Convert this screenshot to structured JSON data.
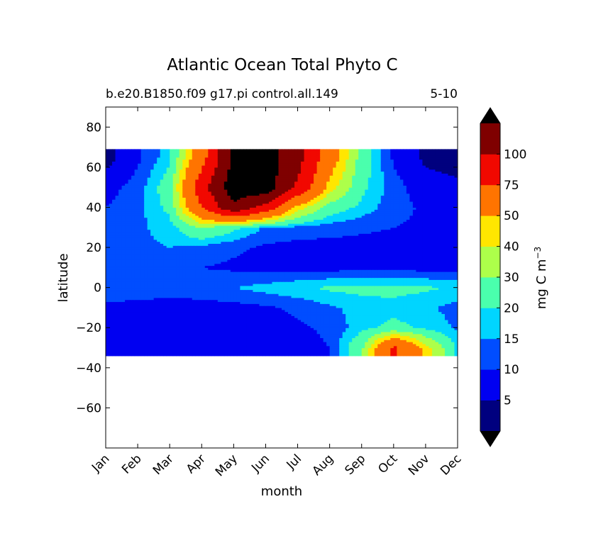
{
  "chart_data": {
    "type": "heatmap",
    "title": "Atlantic Ocean Total Phyto C",
    "subtitle_left": "b.e20.B1850.f09 g17.pi control.all.149",
    "subtitle_right": "5-10",
    "xlabel": "month",
    "ylabel": "latitude",
    "x_categories": [
      "Jan",
      "Feb",
      "Mar",
      "Apr",
      "May",
      "Jun",
      "Jul",
      "Aug",
      "Sep",
      "Oct",
      "Nov",
      "Dec"
    ],
    "xlim": [
      0,
      11
    ],
    "ylim": [
      -80,
      90
    ],
    "y_ticks": [
      80,
      60,
      40,
      20,
      0,
      -20,
      -40,
      -60
    ],
    "y_tick_labels": [
      "80",
      "60",
      "40",
      "20",
      "0",
      "−20",
      "−40",
      "−60"
    ],
    "data_lat_range": [
      -34,
      69
    ],
    "colorbar": {
      "label": "mg C m",
      "label_exponent": "−3",
      "levels": [
        0,
        5,
        10,
        15,
        20,
        30,
        40,
        50,
        75,
        100,
        125
      ],
      "tick_labels": [
        "5",
        "10",
        "15",
        "20",
        "30",
        "40",
        "50",
        "75",
        "100"
      ],
      "colors": [
        "#00007f",
        "#0000f1",
        "#004dff",
        "#00d5ff",
        "#4affad",
        "#adff4a",
        "#ffe600",
        "#ff7400",
        "#f10800",
        "#7f0000"
      ],
      "over_color": "#000000",
      "under_color": "#000000",
      "extend": "both"
    },
    "approx_values": {
      "note_rows": "latitude bands (deg N), values per month Jan..Dec",
      "rows": [
        {
          "lat": 65,
          "values": [
            3,
            9,
            18,
            65,
            130,
            135,
            110,
            60,
            25,
            9,
            4,
            3
          ]
        },
        {
          "lat": 50,
          "values": [
            8,
            12,
            25,
            90,
            140,
            140,
            95,
            45,
            22,
            12,
            7,
            6
          ]
        },
        {
          "lat": 40,
          "values": [
            10,
            13,
            22,
            75,
            120,
            90,
            45,
            25,
            18,
            12,
            9,
            9
          ]
        },
        {
          "lat": 30,
          "values": [
            11,
            14,
            17,
            30,
            22,
            14,
            13,
            12,
            11,
            10,
            9,
            10
          ]
        },
        {
          "lat": 20,
          "values": [
            13,
            14,
            15,
            13,
            11,
            9,
            8,
            8,
            8,
            8,
            8,
            9
          ]
        },
        {
          "lat": 10,
          "values": [
            12,
            12,
            11,
            10,
            9,
            8,
            8,
            8,
            8,
            8,
            8,
            8
          ]
        },
        {
          "lat": 0,
          "values": [
            13,
            13,
            13,
            14,
            15,
            17,
            19,
            21,
            22,
            22,
            21,
            19
          ]
        },
        {
          "lat": -10,
          "values": [
            9,
            8,
            7,
            7,
            8,
            9,
            11,
            14,
            17,
            18,
            16,
            13
          ]
        },
        {
          "lat": -20,
          "values": [
            8,
            7,
            7,
            7,
            7,
            8,
            9,
            11,
            18,
            22,
            19,
            14
          ]
        },
        {
          "lat": -30,
          "values": [
            8,
            7,
            7,
            7,
            7,
            7,
            8,
            10,
            28,
            80,
            45,
            18
          ]
        }
      ]
    }
  }
}
